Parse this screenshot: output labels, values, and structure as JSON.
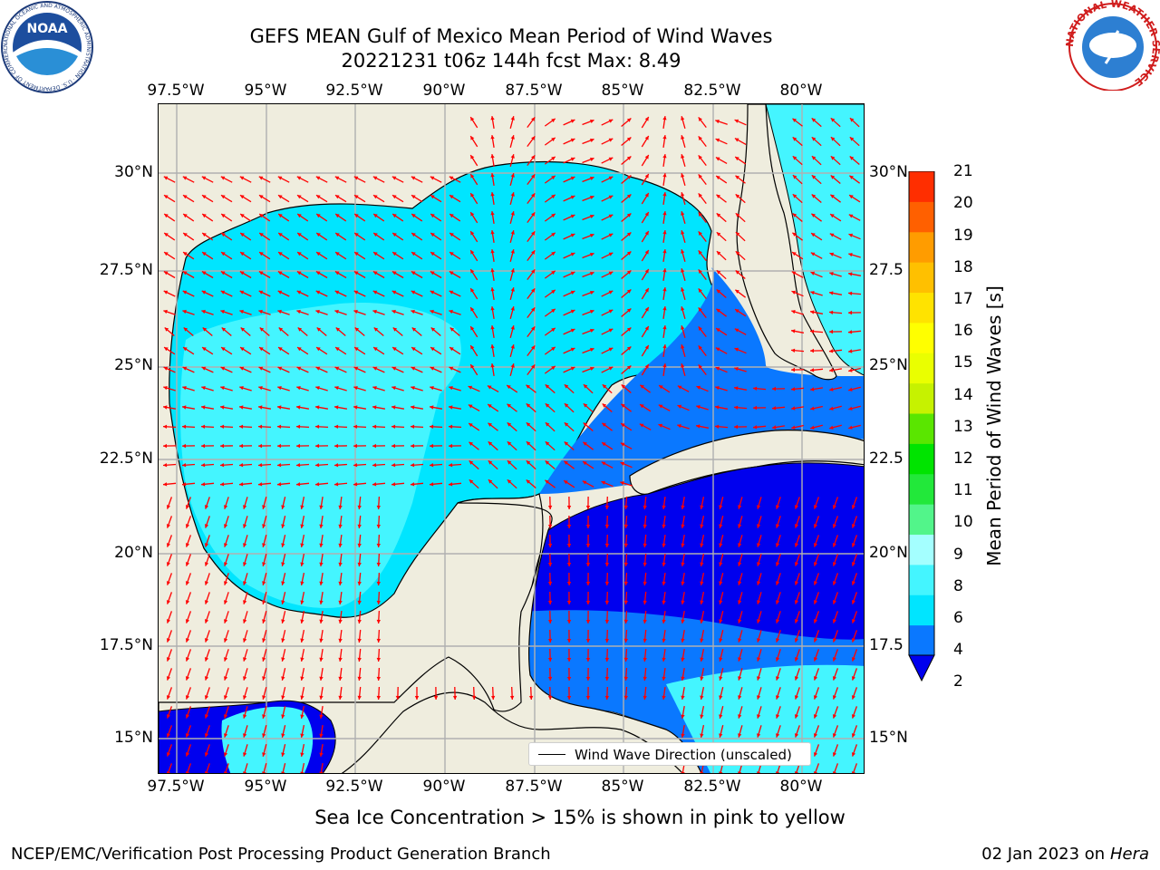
{
  "title_line1": "GEFS MEAN Gulf of Mexico Mean Period of Wind Waves",
  "title_line2": "20221231 t06z 144h fcst   Max: 8.49",
  "lon_labels": [
    "97.5°W",
    "95°W",
    "92.5°W",
    "90°W",
    "87.5°W",
    "85°W",
    "82.5°W",
    "80°W"
  ],
  "lat_labels_left": [
    "30°N",
    "27.5°N",
    "25°N",
    "22.5°N",
    "20°N",
    "17.5°N",
    "15°N"
  ],
  "lat_labels_right": [
    "30°N",
    "27.5",
    "25°N",
    "22.5",
    "20°N",
    "17.5",
    "15°N"
  ],
  "legend_label": "Wind Wave Direction (unscaled)",
  "colorbar": {
    "label": "Mean Period of Wind Waves [s]",
    "ticks": [
      "2",
      "4",
      "6",
      "8",
      "9",
      "10",
      "11",
      "12",
      "13",
      "14",
      "15",
      "16",
      "17",
      "18",
      "19",
      "20",
      "21"
    ],
    "colors": [
      "#0a78ff",
      "#00e5ff",
      "#44f5ff",
      "#a4ffff",
      "#52f58a",
      "#22e83a",
      "#00e400",
      "#5ae600",
      "#c6f200",
      "#eaff00",
      "#ffff00",
      "#ffe300",
      "#ffc000",
      "#ff9c00",
      "#ff6000",
      "#ff2e00",
      "#ff0000"
    ],
    "underflow_color": "#0000ee"
  },
  "ice_note": "Sea Ice Concentration > 15% is shown in pink to yellow",
  "footer_left": "NCEP/EMC/Verification Post Processing Product Generation Branch",
  "footer_date": "02 Jan 2023 on",
  "footer_host": "Hera",
  "logos": {
    "noaa_text": "NOAA",
    "noaa_ring": "NATIONAL OCEANIC AND ATMOSPHERIC ADMINISTRATION · U.S. DEPARTMENT OF COMMERCE",
    "nws_ring": "NATIONAL WEATHER SERVICE"
  },
  "colors": {
    "land": "#efedde",
    "grid": "#b0b0b0",
    "arrow": "#ff0000"
  }
}
